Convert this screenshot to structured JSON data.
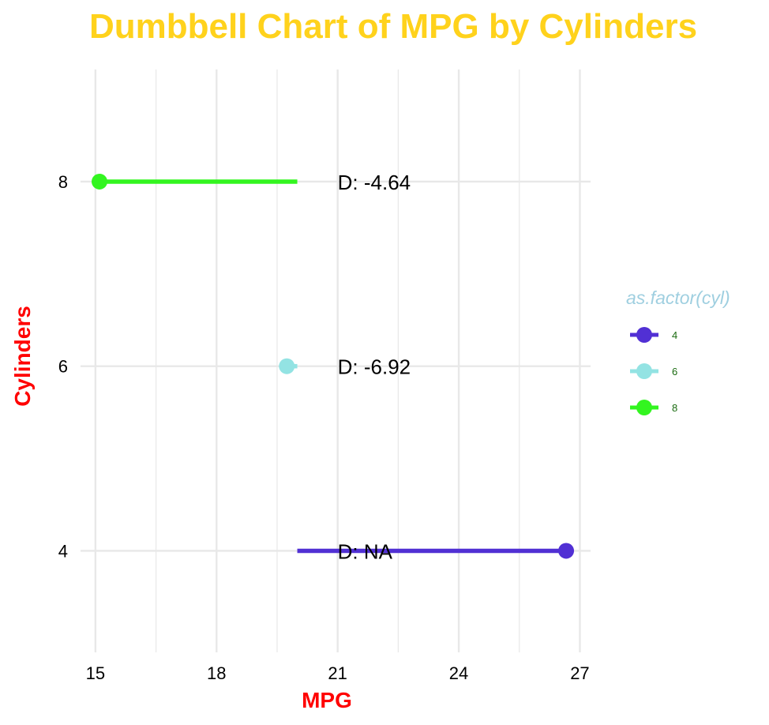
{
  "chart_data": {
    "type": "dumbbell",
    "title": "Dumbbell Chart of MPG by Cylinders",
    "xlabel": "MPG",
    "ylabel": "Cylinders",
    "xlim": [
      14.2,
      27.5
    ],
    "ylim": [
      2.9,
      9.3
    ],
    "x_ticks": [
      15,
      18,
      21,
      24,
      27
    ],
    "y_ticks": [
      4,
      6,
      8
    ],
    "grid": true,
    "series": [
      {
        "name": "4",
        "y": 4,
        "x_start": 20,
        "x_end": 26.66,
        "point": 26.66,
        "label": "D: NA",
        "color": "#5130d4"
      },
      {
        "name": "6",
        "y": 6,
        "x_start": 20,
        "x_end": 19.74,
        "point": 19.74,
        "label": "D: -6.92",
        "color": "#93e3e3"
      },
      {
        "name": "8",
        "y": 8,
        "x_start": 20,
        "x_end": 15.1,
        "point": 15.1,
        "label": "D: -4.64",
        "color": "#33f520"
      }
    ],
    "label_x": 21,
    "legend": {
      "title": "as.factor(cyl)",
      "position": "right",
      "entries": [
        "4",
        "6",
        "8"
      ]
    },
    "colors": {
      "title": "#ffd21c",
      "axis_title": "#ff0000",
      "legend_title": "#9fcfe0",
      "legend_label": "#1a6b10",
      "grid": "#e8e8e8"
    }
  }
}
